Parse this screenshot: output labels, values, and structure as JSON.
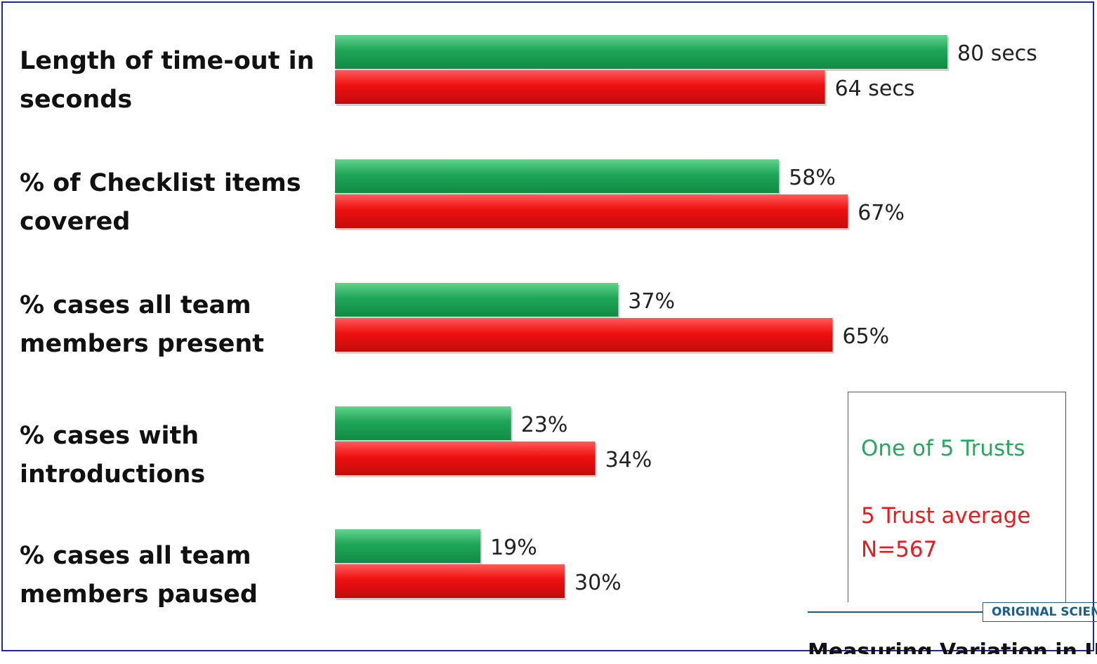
{
  "chart_data": {
    "type": "bar",
    "orientation": "horizontal",
    "categories": [
      "Length of time-out in seconds",
      "% of Checklist items covered",
      "% cases all team members present",
      "% cases with introductions",
      "% cases all team members paused"
    ],
    "category_lines": [
      [
        "Length of time-out in",
        "seconds"
      ],
      [
        "% of Checklist items",
        "covered"
      ],
      [
        "% cases all team",
        "members present"
      ],
      [
        "% cases with",
        "introductions"
      ],
      [
        "% cases all team",
        "members paused"
      ]
    ],
    "series": [
      {
        "name": "One of 5 Trusts",
        "color": "#1fa65a",
        "values": [
          80,
          58,
          37,
          23,
          19
        ],
        "labels": [
          "80 secs",
          "58%",
          "37%",
          "23%",
          "19%"
        ]
      },
      {
        "name": "5 Trust average",
        "color": "#e8161b",
        "values": [
          64,
          67,
          65,
          34,
          30
        ],
        "labels": [
          "64 secs",
          "67%",
          "65%",
          "34%",
          "30%"
        ]
      }
    ],
    "xlim": [
      0,
      80
    ],
    "grid": false,
    "legend_position": "bottom-right"
  },
  "legend": {
    "line1": "One of 5 Trusts",
    "line2": "5 Trust average",
    "line3": "N=567"
  },
  "page_strip": {
    "tag": "ORIGINAL SCIEN",
    "headline": "Measuring Variation in Use"
  }
}
